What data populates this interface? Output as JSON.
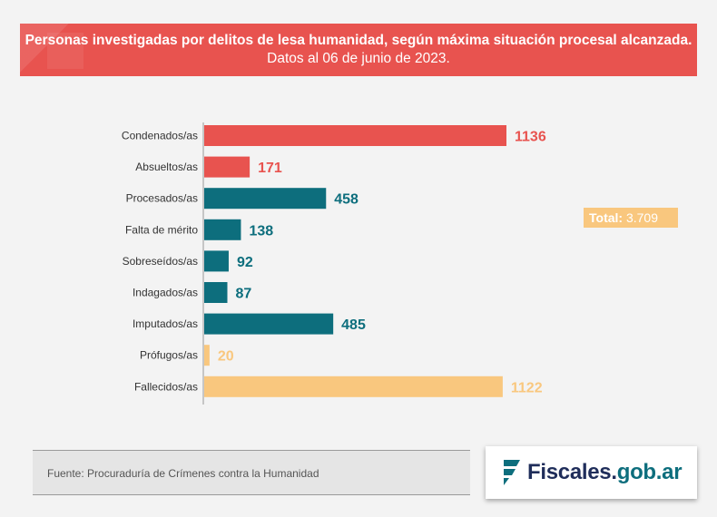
{
  "title": {
    "bold": "Personas investigadas por delitos de lesa humanidad, según máxima situación procesal alcanzada.",
    "normal": "Datos al 06 de junio de 2023."
  },
  "total": {
    "label": "Total:",
    "value": "3.709"
  },
  "source": "Fuente: Procuraduría de Crímenes contra la Humanidad",
  "logo": {
    "main": "Fiscales.",
    "accent": "gob.ar"
  },
  "colors": {
    "red": "#e8534f",
    "teal": "#0d6e7d",
    "yellow": "#f9c77e",
    "axis": "#999999",
    "label": "#333333"
  },
  "chart_data": {
    "type": "bar",
    "orientation": "horizontal",
    "categories": [
      "Condenados/as",
      "Absueltos/as",
      "Procesados/as",
      "Falta de mérito",
      "Sobreseídos/as",
      "Indagados/as",
      "Imputados/as",
      "Prófugos/as",
      "Fallecidos/as"
    ],
    "values": [
      1136,
      171,
      458,
      138,
      92,
      87,
      485,
      20,
      1122
    ],
    "value_labels": [
      "1136",
      "171",
      "458",
      "138",
      "92",
      "87",
      "485",
      "20",
      "1122"
    ],
    "bar_colors": [
      "red",
      "red",
      "teal",
      "teal",
      "teal",
      "teal",
      "teal",
      "yellow",
      "yellow"
    ],
    "xlim": [
      0,
      1136
    ],
    "grid": false,
    "legend": "none"
  }
}
